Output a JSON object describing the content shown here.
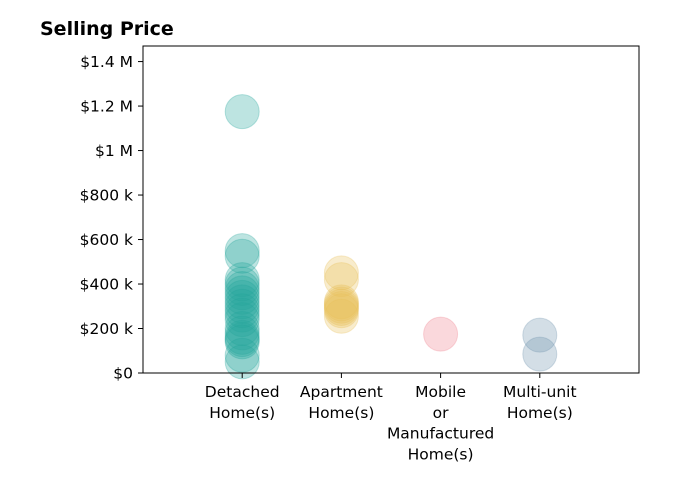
{
  "chart_data": {
    "type": "scatter",
    "title": "Selling Price",
    "xlabel": "",
    "ylabel": "",
    "categories": [
      "Detached\nHome(s)",
      "Apartment\nHome(s)",
      "Mobile\nor\nManufactured\nHome(s)",
      "Multi-unit\nHome(s)"
    ],
    "y_ticks": [
      {
        "value": 0,
        "label": "$0"
      },
      {
        "value": 200000,
        "label": "$200 k"
      },
      {
        "value": 400000,
        "label": "$400 k"
      },
      {
        "value": 600000,
        "label": "$600 k"
      },
      {
        "value": 800000,
        "label": "$800 k"
      },
      {
        "value": 1000000,
        "label": "$1 M"
      },
      {
        "value": 1200000,
        "label": "$1.2 M"
      },
      {
        "value": 1400000,
        "label": "$1.4 M"
      }
    ],
    "ylim": [
      0,
      1470000
    ],
    "xlim": [
      -1,
      4
    ],
    "grid": false,
    "legend": "none",
    "point_alpha": 0.3,
    "series": [
      {
        "category_index": 0,
        "color": "#26A69A",
        "values": [
          1175000,
          550000,
          525000,
          420000,
          400000,
          380000,
          360000,
          340000,
          320000,
          300000,
          280000,
          260000,
          240000,
          200000,
          180000,
          160000,
          150000,
          140000,
          80000,
          50000
        ]
      },
      {
        "category_index": 1,
        "color": "#E8C15A",
        "values": [
          450000,
          420000,
          320000,
          310000,
          300000,
          290000,
          280000,
          255000
        ]
      },
      {
        "category_index": 2,
        "color": "#EF7F8A",
        "values": [
          175000
        ]
      },
      {
        "category_index": 3,
        "color": "#6E93AD",
        "values": [
          170000,
          85000
        ]
      }
    ]
  }
}
